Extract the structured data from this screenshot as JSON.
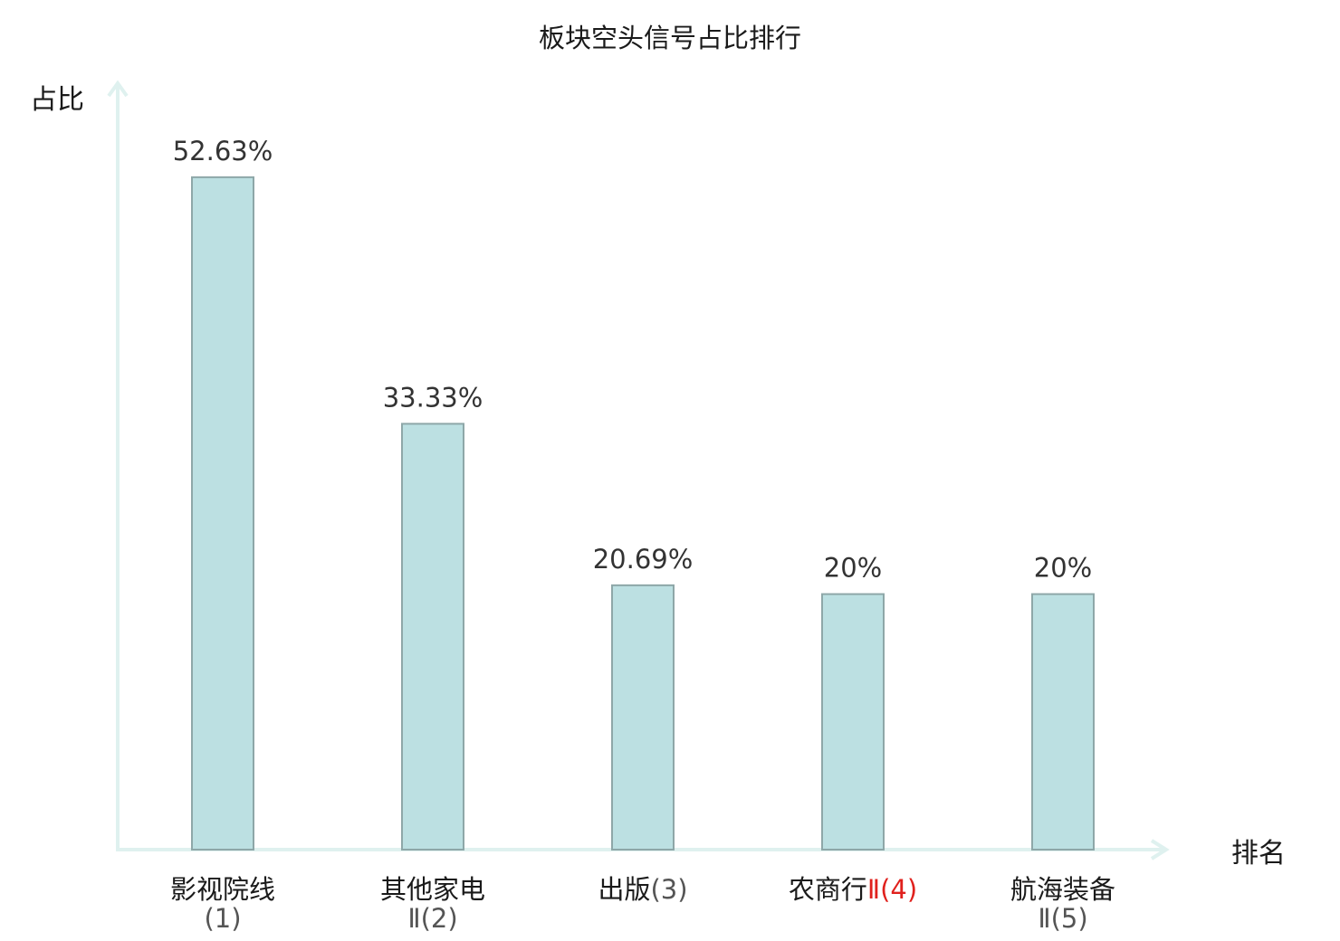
{
  "chart_data": {
    "type": "bar",
    "title": "板块空头信号占比排行",
    "ylabel": "占比",
    "xlabel": "排名",
    "ylim": [
      0,
      60
    ],
    "grid": false,
    "categories": [
      {
        "name": "影视院线",
        "rank": "(1)",
        "highlight": false
      },
      {
        "name": "其他家电",
        "rank": "Ⅱ(2)",
        "highlight": false
      },
      {
        "name": "出版",
        "rank": "(3)",
        "highlight": false
      },
      {
        "name": "农商行",
        "rank": "Ⅱ(4)",
        "highlight": true
      },
      {
        "name": "航海装备",
        "rank": "Ⅱ(5)",
        "highlight": false
      }
    ],
    "values": [
      52.63,
      33.33,
      20.69,
      20,
      20
    ],
    "value_labels": [
      "52.63%",
      "33.33%",
      "20.69%",
      "20%",
      "20%"
    ]
  },
  "colors": {
    "bar_fill": "#bce0e2",
    "bar_stroke": "#8ea7a8",
    "axis": "#dff1ef",
    "highlight_text": "#e0211d",
    "text": "#1a1a1a"
  }
}
